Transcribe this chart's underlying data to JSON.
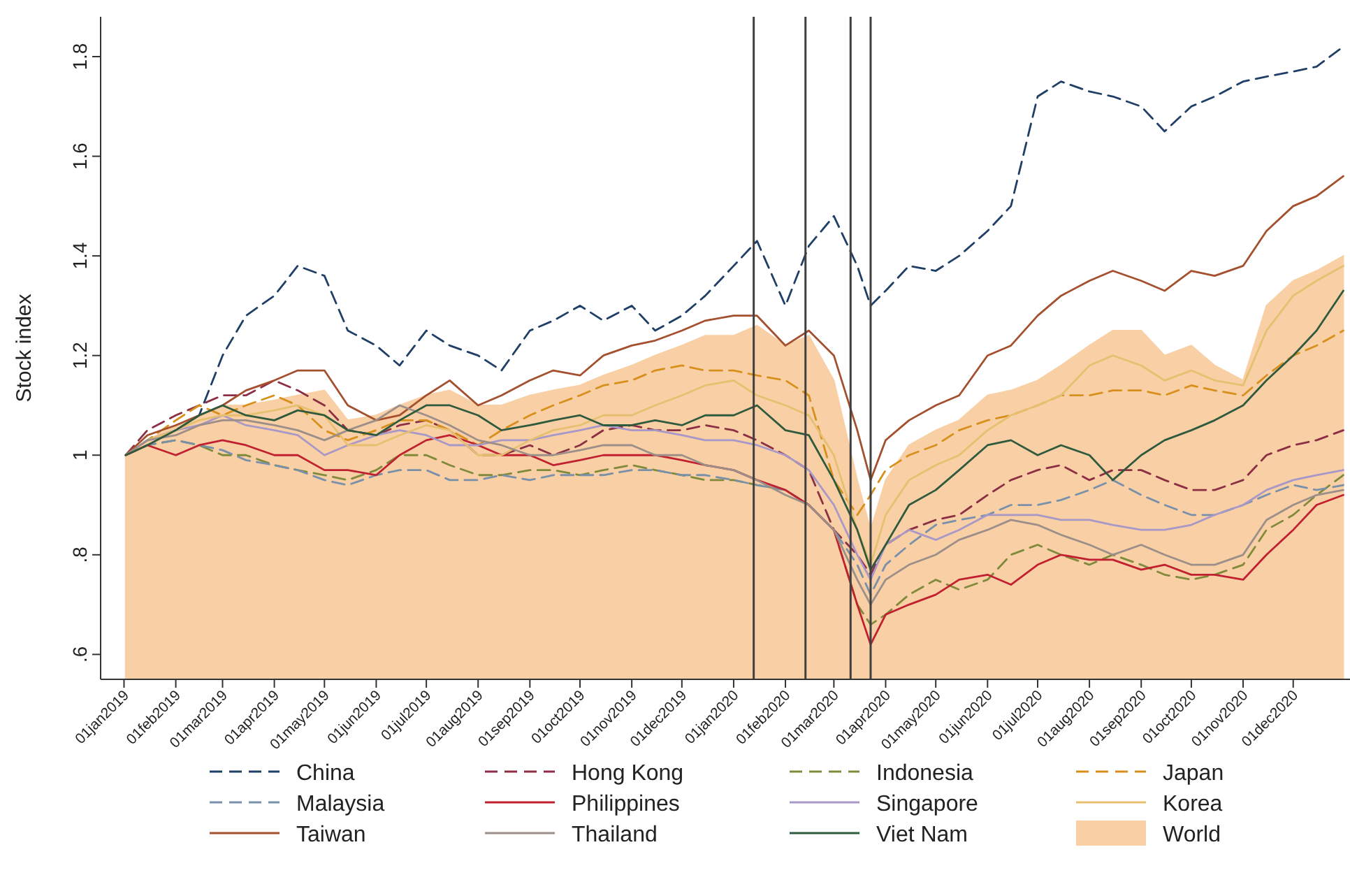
{
  "chart_data": {
    "type": "line",
    "ylabel": "Stock index",
    "legend": "bottom",
    "x": [
      "2019-01-02",
      "2019-01-15",
      "2019-02-01",
      "2019-02-15",
      "2019-03-01",
      "2019-03-15",
      "2019-04-01",
      "2019-04-15",
      "2019-05-01",
      "2019-05-15",
      "2019-06-01",
      "2019-06-15",
      "2019-07-01",
      "2019-07-15",
      "2019-08-01",
      "2019-08-15",
      "2019-09-01",
      "2019-09-15",
      "2019-10-01",
      "2019-10-15",
      "2019-11-01",
      "2019-11-15",
      "2019-12-01",
      "2019-12-15",
      "2020-01-01",
      "2020-01-15",
      "2020-02-01",
      "2020-02-15",
      "2020-03-01",
      "2020-03-15",
      "2020-03-23",
      "2020-04-01",
      "2020-04-15",
      "2020-05-01",
      "2020-05-15",
      "2020-06-01",
      "2020-06-15",
      "2020-07-01",
      "2020-07-15",
      "2020-08-01",
      "2020-08-15",
      "2020-09-01",
      "2020-09-15",
      "2020-10-01",
      "2020-10-15",
      "2020-11-01",
      "2020-11-15",
      "2020-12-01",
      "2020-12-15",
      "2020-12-31"
    ],
    "xlim": [
      "2018-12-18",
      "2021-01-04"
    ],
    "xticks": [
      {
        "value": "2019-01-01",
        "label": "01jan2019"
      },
      {
        "value": "2019-02-01",
        "label": "01feb2019"
      },
      {
        "value": "2019-03-01",
        "label": "01mar2019"
      },
      {
        "value": "2019-04-01",
        "label": "01apr2019"
      },
      {
        "value": "2019-05-01",
        "label": "01may2019"
      },
      {
        "value": "2019-06-01",
        "label": "01jun2019"
      },
      {
        "value": "2019-07-01",
        "label": "01jul2019"
      },
      {
        "value": "2019-08-01",
        "label": "01aug2019"
      },
      {
        "value": "2019-09-01",
        "label": "01sep2019"
      },
      {
        "value": "2019-10-01",
        "label": "01oct2019"
      },
      {
        "value": "2019-11-01",
        "label": "01nov2019"
      },
      {
        "value": "2019-12-01",
        "label": "01dec2019"
      },
      {
        "value": "2020-01-01",
        "label": "01jan2020"
      },
      {
        "value": "2020-02-01",
        "label": "01feb2020"
      },
      {
        "value": "2020-03-01",
        "label": "01mar2020"
      },
      {
        "value": "2020-04-01",
        "label": "01apr2020"
      },
      {
        "value": "2020-05-01",
        "label": "01may2020"
      },
      {
        "value": "2020-06-01",
        "label": "01jun2020"
      },
      {
        "value": "2020-07-01",
        "label": "01jul2020"
      },
      {
        "value": "2020-08-01",
        "label": "01aug2020"
      },
      {
        "value": "2020-09-01",
        "label": "01sep2020"
      },
      {
        "value": "2020-10-01",
        "label": "01oct2020"
      },
      {
        "value": "2020-11-01",
        "label": "01nov2020"
      },
      {
        "value": "2020-12-01",
        "label": "01dec2020"
      }
    ],
    "ylim": [
      0.55,
      1.88
    ],
    "yticks": [
      {
        "value": 0.6,
        "label": ".6"
      },
      {
        "value": 0.8,
        "label": ".8"
      },
      1,
      1.2,
      1.4,
      1.6,
      1.8
    ],
    "ref_lines": [
      {
        "axis": "x",
        "value": "2020-01-13",
        "color": "#404040"
      },
      {
        "axis": "x",
        "value": "2020-02-13",
        "color": "#404040"
      },
      {
        "axis": "x",
        "value": "2020-03-11",
        "color": "#404040"
      },
      {
        "axis": "x",
        "value": "2020-03-23",
        "color": "#404040"
      }
    ],
    "series": [
      {
        "name": "China",
        "color": "#1f3f66",
        "line_style": "dashed",
        "values": [
          1.0,
          1.03,
          1.05,
          1.08,
          1.2,
          1.28,
          1.32,
          1.38,
          1.36,
          1.25,
          1.22,
          1.18,
          1.25,
          1.22,
          1.2,
          1.17,
          1.25,
          1.27,
          1.3,
          1.27,
          1.3,
          1.25,
          1.28,
          1.32,
          1.38,
          1.43,
          1.3,
          1.42,
          1.48,
          1.38,
          1.3,
          1.33,
          1.38,
          1.37,
          1.4,
          1.45,
          1.5,
          1.72,
          1.75,
          1.73,
          1.72,
          1.7,
          1.65,
          1.7,
          1.72,
          1.75,
          1.76,
          1.77,
          1.78,
          1.82
        ]
      },
      {
        "name": "Hong Kong",
        "color": "#8c2f45",
        "line_style": "dashed",
        "values": [
          1.0,
          1.05,
          1.08,
          1.1,
          1.12,
          1.12,
          1.15,
          1.13,
          1.1,
          1.05,
          1.04,
          1.06,
          1.07,
          1.05,
          1.0,
          1.0,
          1.02,
          1.0,
          1.02,
          1.05,
          1.06,
          1.05,
          1.05,
          1.06,
          1.05,
          1.03,
          1.0,
          0.97,
          0.85,
          0.8,
          0.76,
          0.82,
          0.85,
          0.87,
          0.88,
          0.92,
          0.95,
          0.97,
          0.98,
          0.95,
          0.97,
          0.97,
          0.95,
          0.93,
          0.93,
          0.95,
          1.0,
          1.02,
          1.03,
          1.05
        ]
      },
      {
        "name": "Indonesia",
        "color": "#7f8a3a",
        "line_style": "dashed",
        "values": [
          1.0,
          1.02,
          1.03,
          1.02,
          1.0,
          1.0,
          0.98,
          0.97,
          0.96,
          0.95,
          0.97,
          1.0,
          1.0,
          0.98,
          0.96,
          0.96,
          0.97,
          0.97,
          0.96,
          0.97,
          0.98,
          0.97,
          0.96,
          0.95,
          0.95,
          0.94,
          0.93,
          0.9,
          0.85,
          0.7,
          0.66,
          0.68,
          0.72,
          0.75,
          0.73,
          0.75,
          0.8,
          0.82,
          0.8,
          0.78,
          0.8,
          0.78,
          0.76,
          0.75,
          0.76,
          0.78,
          0.85,
          0.88,
          0.92,
          0.96
        ]
      },
      {
        "name": "Japan",
        "color": "#d8901c",
        "line_style": "dashed",
        "values": [
          1.0,
          1.03,
          1.07,
          1.1,
          1.08,
          1.1,
          1.12,
          1.1,
          1.05,
          1.03,
          1.05,
          1.07,
          1.07,
          1.05,
          1.02,
          1.05,
          1.08,
          1.1,
          1.12,
          1.14,
          1.15,
          1.17,
          1.18,
          1.17,
          1.17,
          1.16,
          1.15,
          1.12,
          0.95,
          0.88,
          0.92,
          0.97,
          1.0,
          1.02,
          1.05,
          1.07,
          1.08,
          1.1,
          1.12,
          1.12,
          1.13,
          1.13,
          1.12,
          1.14,
          1.13,
          1.12,
          1.16,
          1.2,
          1.22,
          1.25
        ]
      },
      {
        "name": "Malaysia",
        "color": "#7890aa",
        "line_style": "dashed",
        "values": [
          1.0,
          1.02,
          1.03,
          1.02,
          1.01,
          0.99,
          0.98,
          0.97,
          0.95,
          0.94,
          0.96,
          0.97,
          0.97,
          0.95,
          0.95,
          0.96,
          0.95,
          0.96,
          0.96,
          0.96,
          0.97,
          0.97,
          0.96,
          0.96,
          0.95,
          0.94,
          0.93,
          0.9,
          0.85,
          0.78,
          0.72,
          0.78,
          0.82,
          0.86,
          0.87,
          0.88,
          0.9,
          0.9,
          0.91,
          0.93,
          0.95,
          0.92,
          0.9,
          0.88,
          0.88,
          0.9,
          0.92,
          0.94,
          0.93,
          0.94
        ]
      },
      {
        "name": "Philippines",
        "color": "#c0202f",
        "values": [
          1.0,
          1.02,
          1.0,
          1.02,
          1.03,
          1.02,
          1.0,
          1.0,
          0.97,
          0.97,
          0.96,
          1.0,
          1.03,
          1.04,
          1.02,
          1.0,
          1.0,
          0.98,
          0.99,
          1.0,
          1.0,
          1.0,
          0.99,
          0.98,
          0.97,
          0.95,
          0.93,
          0.9,
          0.85,
          0.7,
          0.62,
          0.68,
          0.7,
          0.72,
          0.75,
          0.76,
          0.74,
          0.78,
          0.8,
          0.79,
          0.79,
          0.77,
          0.78,
          0.76,
          0.76,
          0.75,
          0.8,
          0.85,
          0.9,
          0.92
        ]
      },
      {
        "name": "Singapore",
        "color": "#a898c8",
        "values": [
          1.0,
          1.03,
          1.05,
          1.06,
          1.08,
          1.06,
          1.05,
          1.04,
          1.0,
          1.02,
          1.04,
          1.05,
          1.04,
          1.02,
          1.02,
          1.03,
          1.03,
          1.04,
          1.05,
          1.06,
          1.05,
          1.05,
          1.04,
          1.03,
          1.03,
          1.02,
          1.0,
          0.97,
          0.9,
          0.8,
          0.75,
          0.82,
          0.85,
          0.83,
          0.85,
          0.88,
          0.88,
          0.88,
          0.87,
          0.87,
          0.86,
          0.85,
          0.85,
          0.86,
          0.88,
          0.9,
          0.93,
          0.95,
          0.96,
          0.97
        ]
      },
      {
        "name": "Korea",
        "color": "#e6c070",
        "values": [
          1.0,
          1.03,
          1.05,
          1.07,
          1.08,
          1.08,
          1.09,
          1.1,
          1.08,
          1.02,
          1.02,
          1.04,
          1.06,
          1.05,
          1.0,
          1.0,
          1.03,
          1.05,
          1.06,
          1.08,
          1.08,
          1.1,
          1.12,
          1.14,
          1.15,
          1.12,
          1.1,
          1.08,
          1.0,
          0.85,
          0.78,
          0.88,
          0.95,
          0.98,
          1.0,
          1.05,
          1.08,
          1.1,
          1.12,
          1.18,
          1.2,
          1.18,
          1.15,
          1.17,
          1.15,
          1.14,
          1.25,
          1.32,
          1.35,
          1.38
        ]
      },
      {
        "name": "Taiwan",
        "color": "#a4502e",
        "values": [
          1.0,
          1.04,
          1.06,
          1.08,
          1.1,
          1.13,
          1.15,
          1.17,
          1.17,
          1.1,
          1.07,
          1.08,
          1.12,
          1.15,
          1.1,
          1.12,
          1.15,
          1.17,
          1.16,
          1.2,
          1.22,
          1.23,
          1.25,
          1.27,
          1.28,
          1.28,
          1.22,
          1.25,
          1.2,
          1.05,
          0.95,
          1.03,
          1.07,
          1.1,
          1.12,
          1.2,
          1.22,
          1.28,
          1.32,
          1.35,
          1.37,
          1.35,
          1.33,
          1.37,
          1.36,
          1.38,
          1.45,
          1.5,
          1.52,
          1.56
        ]
      },
      {
        "name": "Thailand",
        "color": "#9c8e88",
        "values": [
          1.0,
          1.03,
          1.04,
          1.06,
          1.07,
          1.07,
          1.06,
          1.05,
          1.03,
          1.05,
          1.07,
          1.1,
          1.08,
          1.06,
          1.03,
          1.02,
          1.0,
          1.0,
          1.01,
          1.02,
          1.02,
          1.0,
          1.0,
          0.98,
          0.97,
          0.95,
          0.92,
          0.9,
          0.85,
          0.75,
          0.7,
          0.75,
          0.78,
          0.8,
          0.83,
          0.85,
          0.87,
          0.86,
          0.84,
          0.82,
          0.8,
          0.82,
          0.8,
          0.78,
          0.78,
          0.8,
          0.87,
          0.9,
          0.92,
          0.93
        ]
      },
      {
        "name": "Viet Nam",
        "color": "#2f5a3e",
        "values": [
          1.0,
          1.02,
          1.05,
          1.08,
          1.1,
          1.08,
          1.07,
          1.09,
          1.08,
          1.05,
          1.04,
          1.07,
          1.1,
          1.1,
          1.08,
          1.05,
          1.06,
          1.07,
          1.08,
          1.06,
          1.06,
          1.07,
          1.06,
          1.08,
          1.08,
          1.1,
          1.05,
          1.04,
          0.95,
          0.85,
          0.77,
          0.82,
          0.9,
          0.93,
          0.97,
          1.02,
          1.03,
          1.0,
          1.02,
          1.0,
          0.95,
          1.0,
          1.03,
          1.05,
          1.07,
          1.1,
          1.15,
          1.2,
          1.25,
          1.33
        ]
      },
      {
        "name": "World",
        "type": "area",
        "color": "#f9cfa5",
        "values": [
          1.0,
          1.03,
          1.06,
          1.08,
          1.1,
          1.1,
          1.11,
          1.12,
          1.13,
          1.07,
          1.08,
          1.1,
          1.12,
          1.13,
          1.1,
          1.1,
          1.12,
          1.13,
          1.14,
          1.16,
          1.18,
          1.2,
          1.22,
          1.24,
          1.24,
          1.26,
          1.22,
          1.24,
          1.15,
          0.95,
          0.85,
          0.95,
          1.02,
          1.05,
          1.07,
          1.12,
          1.13,
          1.15,
          1.18,
          1.22,
          1.25,
          1.25,
          1.2,
          1.22,
          1.18,
          1.15,
          1.3,
          1.35,
          1.37,
          1.4
        ]
      }
    ]
  }
}
